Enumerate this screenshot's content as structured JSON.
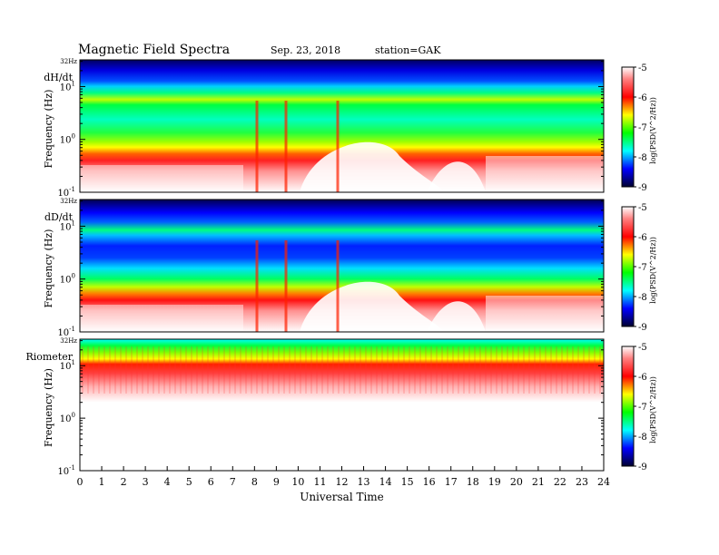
{
  "header": {
    "title": "Magnetic  Field  Spectra",
    "date": "Sep. 23, 2018",
    "station": "station=GAK"
  },
  "chart_data": [
    {
      "type": "heatmap",
      "panel_label": "dH/dt",
      "ylabel": "Frequency  (Hz)",
      "top_label": "32Hz",
      "yscale": "log",
      "ylim": [
        0.1,
        32
      ],
      "yticks": [
        {
          "base": "10",
          "exp": "1",
          "value": 10
        },
        {
          "base": "10",
          "exp": "0",
          "value": 1
        },
        {
          "base": "10",
          "exp": "-1",
          "value": 0.1
        }
      ],
      "xlim": [
        0,
        24
      ],
      "colorbar": {
        "label": "log(PSD(V^2/Hz))",
        "range": [
          -9,
          -5
        ],
        "ticks": [
          "-5",
          "-6",
          "-7",
          "-8",
          "-9"
        ]
      }
    },
    {
      "type": "heatmap",
      "panel_label": "dD/dt",
      "ylabel": "Frequency  (Hz)",
      "top_label": "32Hz",
      "yscale": "log",
      "ylim": [
        0.1,
        32
      ],
      "yticks": [
        {
          "base": "10",
          "exp": "1",
          "value": 10
        },
        {
          "base": "10",
          "exp": "0",
          "value": 1
        },
        {
          "base": "10",
          "exp": "-1",
          "value": 0.1
        }
      ],
      "xlim": [
        0,
        24
      ],
      "colorbar": {
        "label": "log(PSD(V^2/Hz))",
        "range": [
          -9,
          -5
        ],
        "ticks": [
          "-5",
          "-6",
          "-7",
          "-8",
          "-9"
        ]
      }
    },
    {
      "type": "heatmap",
      "panel_label": "Riometer",
      "ylabel": "Frequency  (Hz)",
      "top_label": "32Hz",
      "yscale": "log",
      "ylim": [
        0.1,
        32
      ],
      "yticks": [
        {
          "base": "10",
          "exp": "1",
          "value": 10
        },
        {
          "base": "10",
          "exp": "0",
          "value": 1
        },
        {
          "base": "10",
          "exp": "-1",
          "value": 0.1
        }
      ],
      "xlim": [
        0,
        24
      ],
      "colorbar": {
        "label": "log(PSD(V^2/Hz))",
        "range": [
          -9,
          -5
        ],
        "ticks": [
          "-5",
          "-6",
          "-7",
          "-8",
          "-9"
        ]
      }
    }
  ],
  "xaxis": {
    "label": "Universal Time",
    "ticks": [
      "0",
      "1",
      "2",
      "3",
      "4",
      "5",
      "6",
      "7",
      "8",
      "9",
      "10",
      "11",
      "12",
      "13",
      "14",
      "15",
      "16",
      "17",
      "18",
      "19",
      "20",
      "21",
      "22",
      "23",
      "24"
    ]
  },
  "colors": {
    "scale": [
      "#000040",
      "#0000ff",
      "#00ffff",
      "#00ff00",
      "#ffff00",
      "#ff0000",
      "#ffffff"
    ]
  }
}
